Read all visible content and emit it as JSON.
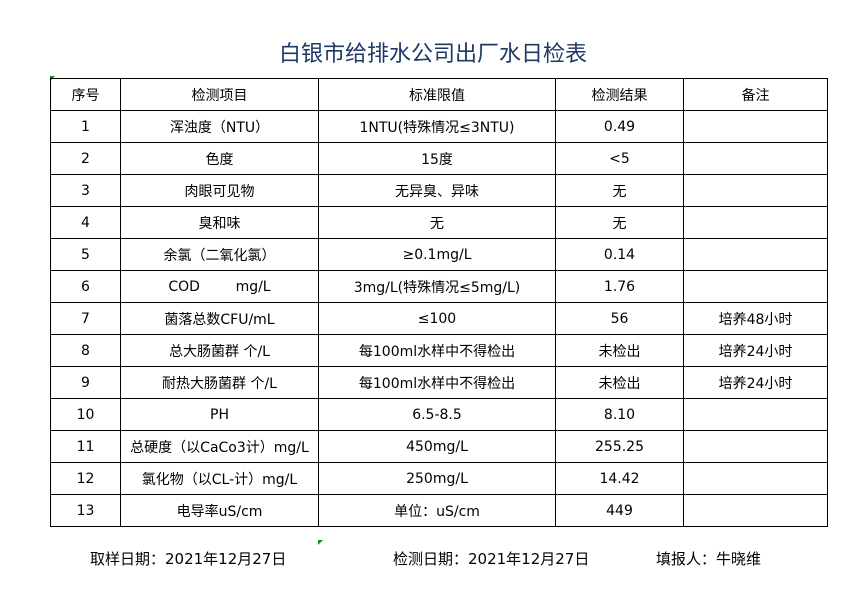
{
  "title": "白银市给排水公司出厂水日检表",
  "headers": [
    "序号",
    "检测项目",
    "标准限值",
    "检测结果",
    "备注"
  ],
  "rows": [
    [
      "1",
      "浑浊度（NTU）",
      "1NTU(特殊情况≤3NTU)",
      "0.49",
      ""
    ],
    [
      "2",
      "色度",
      "15度",
      "<5",
      ""
    ],
    [
      "3",
      "肉眼可见物",
      "无异臭、异味",
      "无",
      ""
    ],
    [
      "4",
      "臭和味",
      "无",
      "无",
      ""
    ],
    [
      "5",
      "余氯（二氧化氯）",
      "≥0.1mg/L",
      "0.14",
      ""
    ],
    [
      "6",
      "COD        mg/L",
      "3mg/L(特殊情况≤5mg/L)",
      "1.76",
      ""
    ],
    [
      "7",
      "菌落总数CFU/mL",
      "≤100",
      "56",
      "培养48小时"
    ],
    [
      "8",
      "总大肠菌群 个/L",
      "每100ml水样中不得检出",
      "未检出",
      "培养24小时"
    ],
    [
      "9",
      "耐热大肠菌群 个/L",
      "每100ml水样中不得检出",
      "未检出",
      "培养24小时"
    ],
    [
      "10",
      "PH",
      "6.5-8.5",
      "8.10",
      ""
    ],
    [
      "11",
      "总硬度（以CaCo3计）mg/L",
      "450mg/L",
      "255.25",
      ""
    ],
    [
      "12",
      "氯化物（以CL-计）mg/L",
      "250mg/L",
      "14.42",
      ""
    ],
    [
      "13",
      "电导率uS/cm",
      "单位：uS/cm",
      "449",
      ""
    ]
  ],
  "footer": {
    "sampling_date": "取样日期：2021年12月27日",
    "test_date": "检测日期：2021年12月27日",
    "reporter": "填报人：牛晓维"
  }
}
